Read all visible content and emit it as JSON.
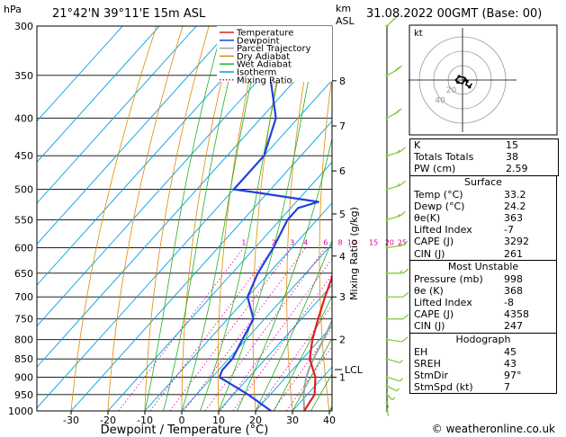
{
  "header": {
    "p_unit": "hPa",
    "alt_unit": "km\nASL",
    "location": "21°42'N  39°11'E  15m  ASL",
    "datetime": "31.08.2022  00GMT  (Base: 00)"
  },
  "legend": [
    "Temperature",
    "Dewpoint",
    "Parcel Trajectory",
    "Dry Adiabat",
    "Wet Adiabat",
    "Isotherm",
    "Mixing Ratio"
  ],
  "colors": {
    "temperature": "#e02020",
    "dewpoint": "#2040e0",
    "parcel": "#a0a0a0",
    "dry_adiabat": "#e08a00",
    "wet_adiabat": "#22b022",
    "isotherm": "#00a0e0",
    "mixing_ratio": "#e000a0"
  },
  "axis": {
    "xlabel": "Dewpoint  /  Temperature  (°C)",
    "mixing_ratio_label": "Mixing Ratio (g/kg)",
    "lcl_label": "LCL"
  },
  "chart_data": {
    "type": "line",
    "pressure_levels": [
      300,
      350,
      400,
      450,
      500,
      550,
      600,
      650,
      700,
      750,
      800,
      850,
      900,
      950,
      1000
    ],
    "temperature_ticks": [
      -30,
      -20,
      -10,
      0,
      10,
      20,
      30,
      40
    ],
    "mixing_ratio_ticks": [
      "1",
      "2",
      "3",
      "4",
      "6",
      "8",
      "10",
      "15",
      "20",
      "25"
    ],
    "altitude_ticks": [
      {
        "km": "1",
        "p": 900
      },
      {
        "km": "2",
        "p": 800
      },
      {
        "km": "3",
        "p": 700
      },
      {
        "km": "4",
        "p": 616
      },
      {
        "km": "5",
        "p": 540
      },
      {
        "km": "6",
        "p": 472
      },
      {
        "km": "7",
        "p": 410
      },
      {
        "km": "8",
        "p": 356
      }
    ],
    "lcl_p": 872,
    "temperature": [
      [
        1000,
        33.2
      ],
      [
        950,
        32
      ],
      [
        900,
        28
      ],
      [
        850,
        22
      ],
      [
        800,
        18
      ],
      [
        750,
        14.5
      ],
      [
        700,
        11
      ],
      [
        650,
        7.5
      ],
      [
        600,
        4
      ],
      [
        550,
        0.5
      ],
      [
        520,
        -2.5
      ],
      [
        505,
        -1.5
      ],
      [
        500,
        -3
      ],
      [
        450,
        -6.5
      ],
      [
        400,
        -11
      ],
      [
        350,
        -17
      ],
      [
        300,
        -25
      ]
    ],
    "dewpoint": [
      [
        1000,
        24.2
      ],
      [
        950,
        14
      ],
      [
        900,
        2
      ],
      [
        880,
        1
      ],
      [
        850,
        1
      ],
      [
        800,
        -1
      ],
      [
        750,
        -3
      ],
      [
        700,
        -10
      ],
      [
        650,
        -13
      ],
      [
        600,
        -15
      ],
      [
        550,
        -18
      ],
      [
        530,
        -18
      ],
      [
        520,
        -14
      ],
      [
        505,
        -33
      ],
      [
        500,
        -40
      ],
      [
        450,
        -40
      ],
      [
        400,
        -46
      ],
      [
        350,
        -58
      ],
      [
        320,
        -66
      ],
      [
        300,
        -64
      ]
    ],
    "parcel": [
      [
        1000,
        33.2
      ],
      [
        950,
        29
      ],
      [
        900,
        25.5
      ],
      [
        872,
        24
      ],
      [
        850,
        23
      ],
      [
        800,
        21
      ],
      [
        750,
        18.5
      ],
      [
        700,
        15.5
      ],
      [
        650,
        12.5
      ],
      [
        600,
        9
      ],
      [
        550,
        5
      ],
      [
        500,
        0.5
      ],
      [
        450,
        -4
      ],
      [
        400,
        -9.5
      ],
      [
        370,
        -13
      ]
    ],
    "wind_barbs": [
      {
        "p": 1000,
        "dir": "calm",
        "spd": 2
      },
      {
        "p": 975,
        "dir": "calm",
        "spd": 3
      },
      {
        "p": 950,
        "dir": "S",
        "spd": 5
      },
      {
        "p": 925,
        "dir": "SSE",
        "spd": 6
      },
      {
        "p": 900,
        "dir": "SE",
        "spd": 6
      },
      {
        "p": 850,
        "dir": "SE",
        "spd": 8
      },
      {
        "p": 800,
        "dir": "ESE",
        "spd": 10
      },
      {
        "p": 750,
        "dir": "E",
        "spd": 12
      },
      {
        "p": 700,
        "dir": "E",
        "spd": 12
      },
      {
        "p": 650,
        "dir": "E",
        "spd": 15
      },
      {
        "p": 600,
        "dir": "ENE",
        "spd": 15
      },
      {
        "p": 550,
        "dir": "NE",
        "spd": 15
      },
      {
        "p": 500,
        "dir": "NE",
        "spd": 15
      },
      {
        "p": 450,
        "dir": "NE",
        "spd": 15
      },
      {
        "p": 400,
        "dir": "NNE",
        "spd": 20
      },
      {
        "p": 350,
        "dir": "NNE",
        "spd": 20
      },
      {
        "p": 300,
        "dir": "N",
        "spd": 15
      }
    ],
    "hodograph": {
      "unit_label": "kt",
      "ring_labels": [
        "20",
        "40"
      ],
      "trace_uv": [
        [
          2,
          0
        ],
        [
          0,
          -3
        ],
        [
          -4,
          -2
        ],
        [
          -6,
          0
        ],
        [
          -3,
          3
        ],
        [
          2,
          2
        ],
        [
          4,
          -1
        ],
        [
          3,
          -4
        ],
        [
          6,
          -6
        ],
        [
          8,
          -3
        ]
      ]
    }
  },
  "indices": {
    "top": [
      {
        "label": "K",
        "value": "15"
      },
      {
        "label": "Totals Totals",
        "value": "38"
      },
      {
        "label": "PW (cm)",
        "value": "2.59"
      }
    ],
    "surface": {
      "title": "Surface",
      "rows": [
        {
          "label": "Temp (°C)",
          "value": "33.2"
        },
        {
          "label": "Dewp (°C)",
          "value": "24.2"
        },
        {
          "label": "θe(K)",
          "value": "363"
        },
        {
          "label": "Lifted Index",
          "value": "-7"
        },
        {
          "label": "CAPE (J)",
          "value": "3292"
        },
        {
          "label": "CIN (J)",
          "value": "261"
        }
      ]
    },
    "most_unstable": {
      "title": "Most Unstable",
      "rows": [
        {
          "label": "Pressure (mb)",
          "value": "998"
        },
        {
          "label": "θe (K)",
          "value": "368"
        },
        {
          "label": "Lifted Index",
          "value": "-8"
        },
        {
          "label": "CAPE (J)",
          "value": "4358"
        },
        {
          "label": "CIN (J)",
          "value": "247"
        }
      ]
    },
    "hodograph": {
      "title": "Hodograph",
      "rows": [
        {
          "label": "EH",
          "value": "45"
        },
        {
          "label": "SREH",
          "value": "43"
        },
        {
          "label": "StmDir",
          "value": "97°"
        },
        {
          "label": "StmSpd (kt)",
          "value": "7"
        }
      ]
    }
  },
  "copyright": "© weatheronline.co.uk"
}
